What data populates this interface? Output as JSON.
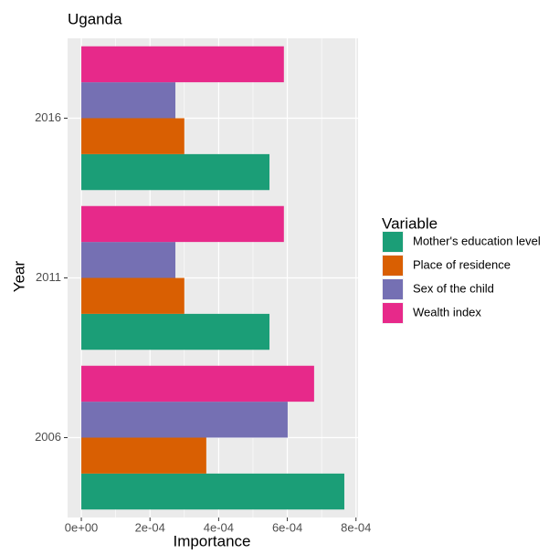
{
  "chart_data": {
    "type": "bar",
    "orientation": "horizontal",
    "title": "Uganda",
    "x_label": "Importance",
    "y_label": "Year",
    "categories": [
      "2006",
      "2011",
      "2016"
    ],
    "series": [
      {
        "name": "Mother's education level",
        "color": "#1b9e77",
        "values": [
          0.000766,
          0.000548,
          0.000548
        ]
      },
      {
        "name": "Place of residence",
        "color": "#d95f02",
        "values": [
          0.000364,
          0.0003,
          0.0003
        ]
      },
      {
        "name": "Sex of the child",
        "color": "#7570b3",
        "values": [
          0.000601,
          0.000274,
          0.000274
        ]
      },
      {
        "name": "Wealth index",
        "color": "#e7298a",
        "values": [
          0.000678,
          0.00059,
          0.00059
        ]
      }
    ],
    "legend_title": "Variable",
    "xlim": [
      -4e-05,
      0.000806
    ],
    "xticks": [
      {
        "value": 0,
        "label": "0e+00"
      },
      {
        "value": 0.0002,
        "label": "2e-04"
      },
      {
        "value": 0.0004,
        "label": "4e-04"
      },
      {
        "value": 0.0006,
        "label": "6e-04"
      },
      {
        "value": 0.0008,
        "label": "8e-04"
      }
    ],
    "grid": true
  }
}
